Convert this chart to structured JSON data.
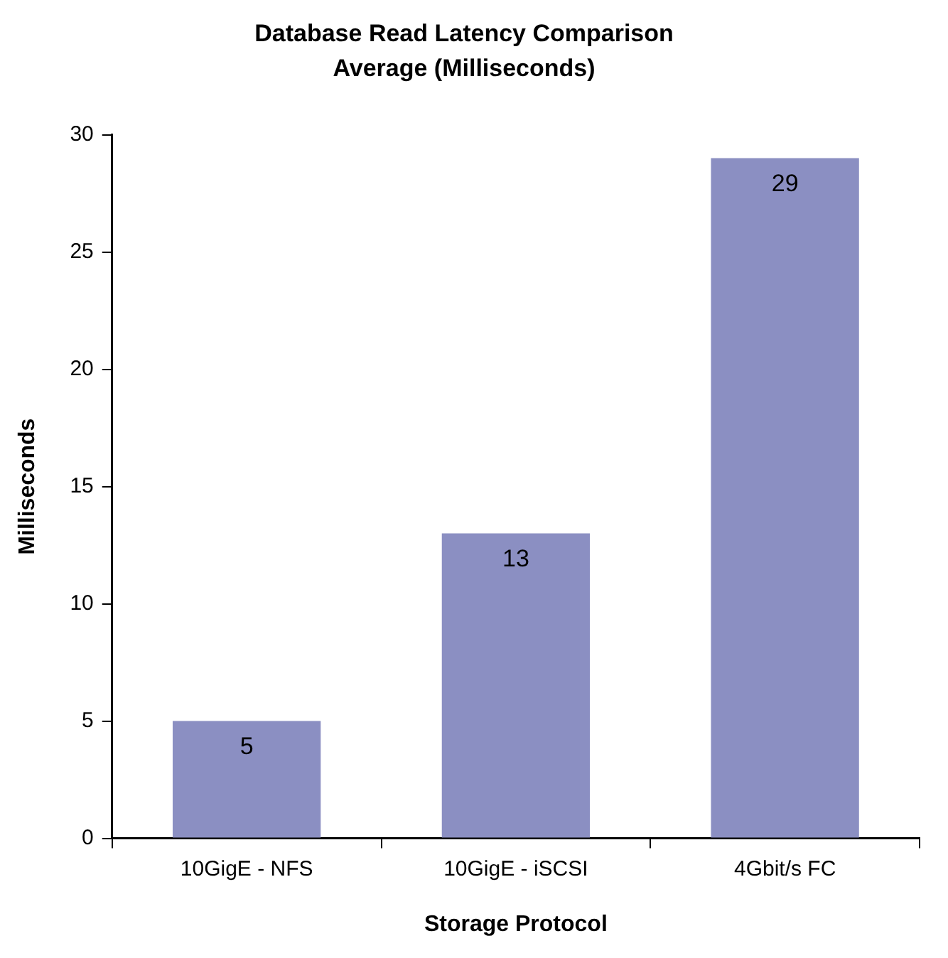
{
  "chart_data": {
    "type": "bar",
    "title": "Database Read Latency Comparison",
    "subtitle": "Average (Milliseconds)",
    "xlabel": "Storage Protocol",
    "ylabel": "Milliseconds",
    "categories": [
      "10GigE - NFS",
      "10GigE - iSCSI",
      "4Gbit/s FC"
    ],
    "values": [
      5,
      13,
      29
    ],
    "color": "#8b8fc2",
    "ylim": [
      0,
      30
    ],
    "yticks": [
      0,
      5,
      10,
      15,
      20,
      25,
      30
    ],
    "grid": false,
    "legend": false,
    "data_labels": true
  }
}
